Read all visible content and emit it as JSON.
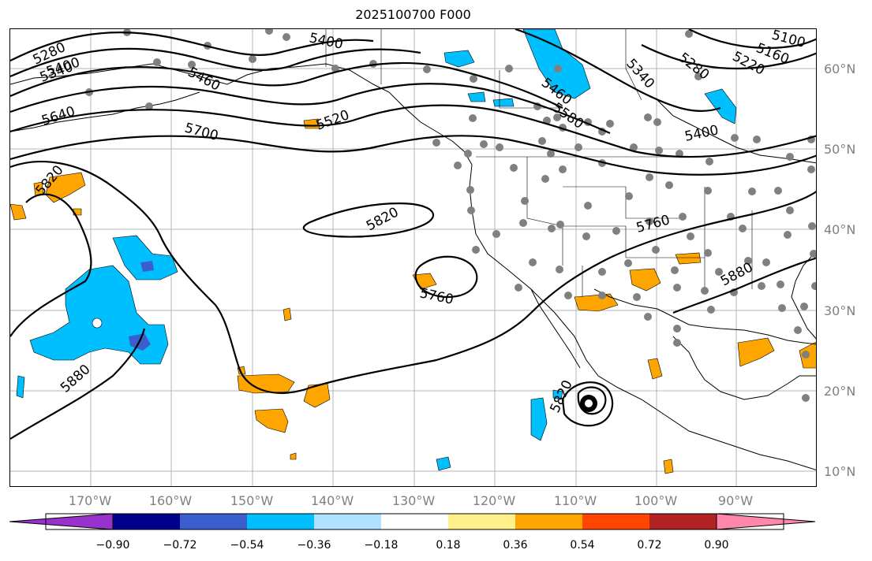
{
  "title": "2025100700 F000",
  "lat_labels": [
    "60°N",
    "50°N",
    "40°N",
    "30°N",
    "20°N",
    "10°N"
  ],
  "lon_labels": [
    "170°W",
    "160°W",
    "150°W",
    "140°W",
    "130°W",
    "120°W",
    "110°W",
    "100°W",
    "90°W"
  ],
  "contour_labels": [
    "5280",
    "5340",
    "5400",
    "5460",
    "5520",
    "5580",
    "5640",
    "5700",
    "5820",
    "5760",
    "5880",
    "5160",
    "5100",
    "5220"
  ],
  "colorbar": {
    "ticks": [
      "−0.90",
      "−0.72",
      "−0.54",
      "−0.36",
      "−0.18",
      "0.18",
      "0.36",
      "0.54",
      "0.72",
      "0.90"
    ],
    "colors": [
      "#9932cc",
      "#00008b",
      "#3a5fcd",
      "#00bfff",
      "#b0e2ff",
      "#ffffff",
      "#fff08c",
      "#ffa500",
      "#ff4500",
      "#b22222",
      "#ff88aa"
    ]
  },
  "colors": {
    "cold_shade": "#00bfff",
    "warm_shade": "#ffa500",
    "station_dot": "#808080",
    "contour": "#000000",
    "grid": "#b4b4b4"
  }
}
